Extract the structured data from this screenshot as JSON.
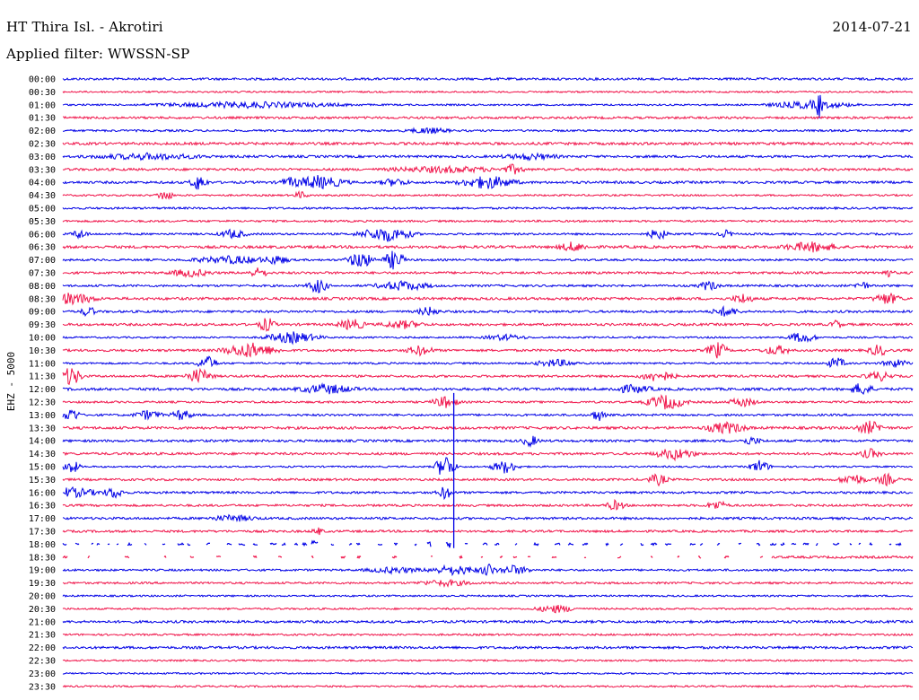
{
  "header": {
    "station": "HT Thira Isl. - Akrotiri",
    "filter": "Applied filter: WWSSN-SP",
    "date": "2014-07-21"
  },
  "chart_data": {
    "type": "line",
    "title": "HT Thira Isl. - Akrotiri",
    "subtitle": "Applied filter: WWSSN-SP",
    "ylabel": "EHZ - 5000",
    "date": "2014-07-21",
    "rows": [
      "00:00",
      "00:30",
      "01:00",
      "01:30",
      "02:00",
      "02:30",
      "03:00",
      "03:30",
      "04:00",
      "04:30",
      "05:00",
      "05:30",
      "06:00",
      "06:30",
      "07:00",
      "07:30",
      "08:00",
      "08:30",
      "09:00",
      "09:30",
      "10:00",
      "10:30",
      "11:00",
      "11:30",
      "12:00",
      "12:30",
      "13:00",
      "13:30",
      "14:00",
      "14:30",
      "15:00",
      "15:30",
      "16:00",
      "16:30",
      "17:00",
      "17:30",
      "18:00",
      "18:30",
      "19:00",
      "19:30",
      "20:00",
      "20:30",
      "21:00",
      "21:30",
      "22:00",
      "22:30",
      "23:00",
      "23:30"
    ],
    "colors": {
      "even": "#0000e6",
      "odd": "#f0144a"
    },
    "grid": false,
    "legend": "none"
  }
}
